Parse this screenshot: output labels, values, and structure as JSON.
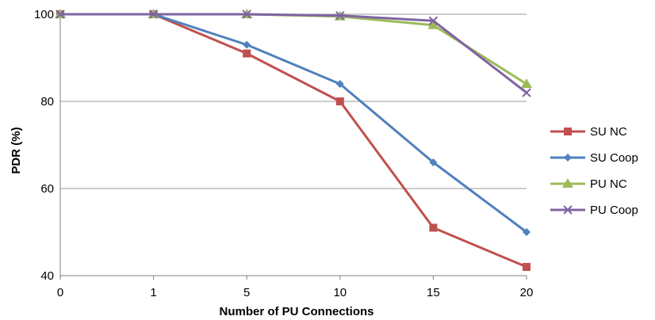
{
  "chart_data": {
    "type": "line",
    "categories": [
      "0",
      "1",
      "5",
      "10",
      "15",
      "20"
    ],
    "xlabel": "Number of PU Connections",
    "ylabel": "PDR (%)",
    "ylim": [
      40,
      100
    ],
    "yticks": [
      "40",
      "60",
      "80",
      "100"
    ],
    "grid": "horizontal",
    "legend_position": "right",
    "series": [
      {
        "name": "SU NC",
        "color": "#c0504d",
        "marker": "square",
        "values": [
          100,
          100,
          91,
          80,
          51,
          42
        ]
      },
      {
        "name": "SU Coop",
        "color": "#4f81bd",
        "marker": "diamond",
        "values": [
          100,
          100,
          93,
          84,
          66,
          50
        ]
      },
      {
        "name": "PU NC",
        "color": "#9bbb59",
        "marker": "triangle",
        "values": [
          100,
          100,
          100,
          99.5,
          97.5,
          84
        ]
      },
      {
        "name": "PU Coop",
        "color": "#8064a2",
        "marker": "x",
        "values": [
          100,
          100,
          100,
          99.7,
          98.5,
          82
        ]
      }
    ]
  }
}
